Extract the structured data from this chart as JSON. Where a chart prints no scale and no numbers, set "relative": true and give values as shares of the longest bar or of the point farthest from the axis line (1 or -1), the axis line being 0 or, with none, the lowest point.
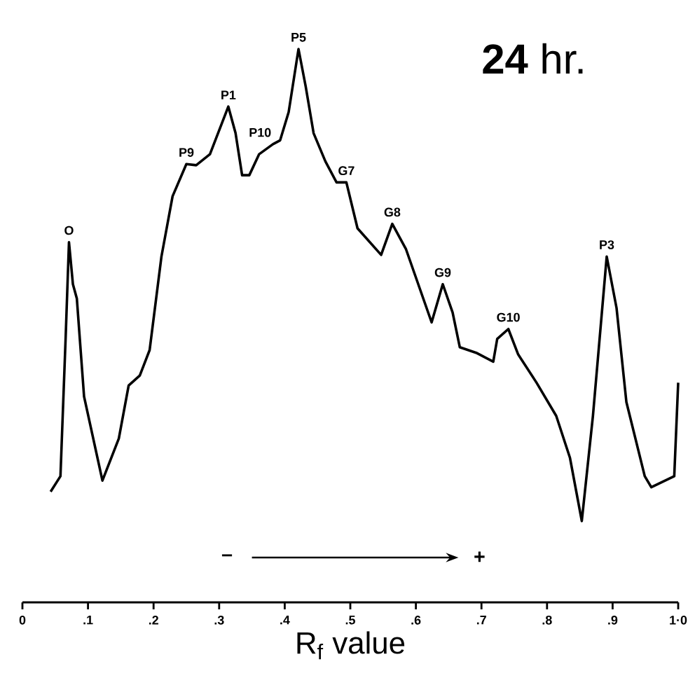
{
  "chart_data": {
    "type": "line",
    "title": "**24** hr.",
    "xlabel": "R$_{f}$ value",
    "relative": true,
    "color": "#000000",
    "line_style": "solid",
    "marker": "none",
    "xlim": [
      0,
      1
    ],
    "xticks": [
      0,
      {
        "value": 0.1,
        "label": ".1"
      },
      {
        "value": 0.2,
        "label": ".2"
      },
      {
        "value": 0.3,
        "label": ".3"
      },
      {
        "value": 0.4,
        "label": ".4"
      },
      {
        "value": 0.5,
        "label": ".5"
      },
      {
        "value": 0.6,
        "label": ".6"
      },
      {
        "value": 0.7,
        "label": ".7"
      },
      {
        "value": 0.8,
        "label": ".8"
      },
      {
        "value": 0.9,
        "label": ".9"
      },
      {
        "value": 1.0,
        "label": "1·0"
      }
    ],
    "x": [
      0.043,
      0.058,
      0.066,
      0.071,
      0.077,
      0.083,
      0.094,
      0.122,
      0.147,
      0.162,
      0.179,
      0.194,
      0.212,
      0.229,
      0.25,
      0.265,
      0.286,
      0.314,
      0.325,
      0.335,
      0.346,
      0.361,
      0.382,
      0.393,
      0.406,
      0.421,
      0.432,
      0.444,
      0.462,
      0.479,
      0.494,
      0.511,
      0.547,
      0.564,
      0.585,
      0.624,
      0.641,
      0.656,
      0.667,
      0.692,
      0.718,
      0.724,
      0.741,
      0.756,
      0.784,
      0.814,
      0.835,
      0.853,
      0.87,
      0.891,
      0.906,
      0.921,
      0.949,
      0.959,
      0.994,
      1.0
    ],
    "values": [
      0.2,
      0.228,
      0.481,
      0.651,
      0.575,
      0.549,
      0.372,
      0.22,
      0.296,
      0.392,
      0.41,
      0.456,
      0.625,
      0.734,
      0.792,
      0.79,
      0.81,
      0.896,
      0.848,
      0.772,
      0.772,
      0.81,
      0.828,
      0.835,
      0.886,
      1.0,
      0.932,
      0.848,
      0.797,
      0.759,
      0.759,
      0.676,
      0.628,
      0.684,
      0.638,
      0.506,
      0.575,
      0.524,
      0.461,
      0.451,
      0.435,
      0.476,
      0.494,
      0.448,
      0.397,
      0.337,
      0.261,
      0.147,
      0.337,
      0.625,
      0.532,
      0.362,
      0.228,
      0.208,
      0.228,
      0.397
    ],
    "annotations": [
      "–",
      "+",
      {
        "text": "O",
        "x": 0.071,
        "y": 0.651
      },
      {
        "text": "P9",
        "x": 0.25,
        "y": 0.792
      },
      {
        "text": "P1",
        "x": 0.314,
        "y": 0.896
      },
      {
        "text": "P10",
        "x": 0.382,
        "y": 0.828
      },
      {
        "text": "P5",
        "x": 0.421,
        "y": 1.0
      },
      {
        "text": "G7",
        "x": 0.494,
        "y": 0.759
      },
      {
        "text": "G8",
        "x": 0.564,
        "y": 0.684
      },
      {
        "text": "G9",
        "x": 0.641,
        "y": 0.575
      },
      {
        "text": "G10",
        "x": 0.741,
        "y": 0.494
      },
      {
        "text": "P3",
        "x": 0.891,
        "y": 0.625
      }
    ]
  }
}
